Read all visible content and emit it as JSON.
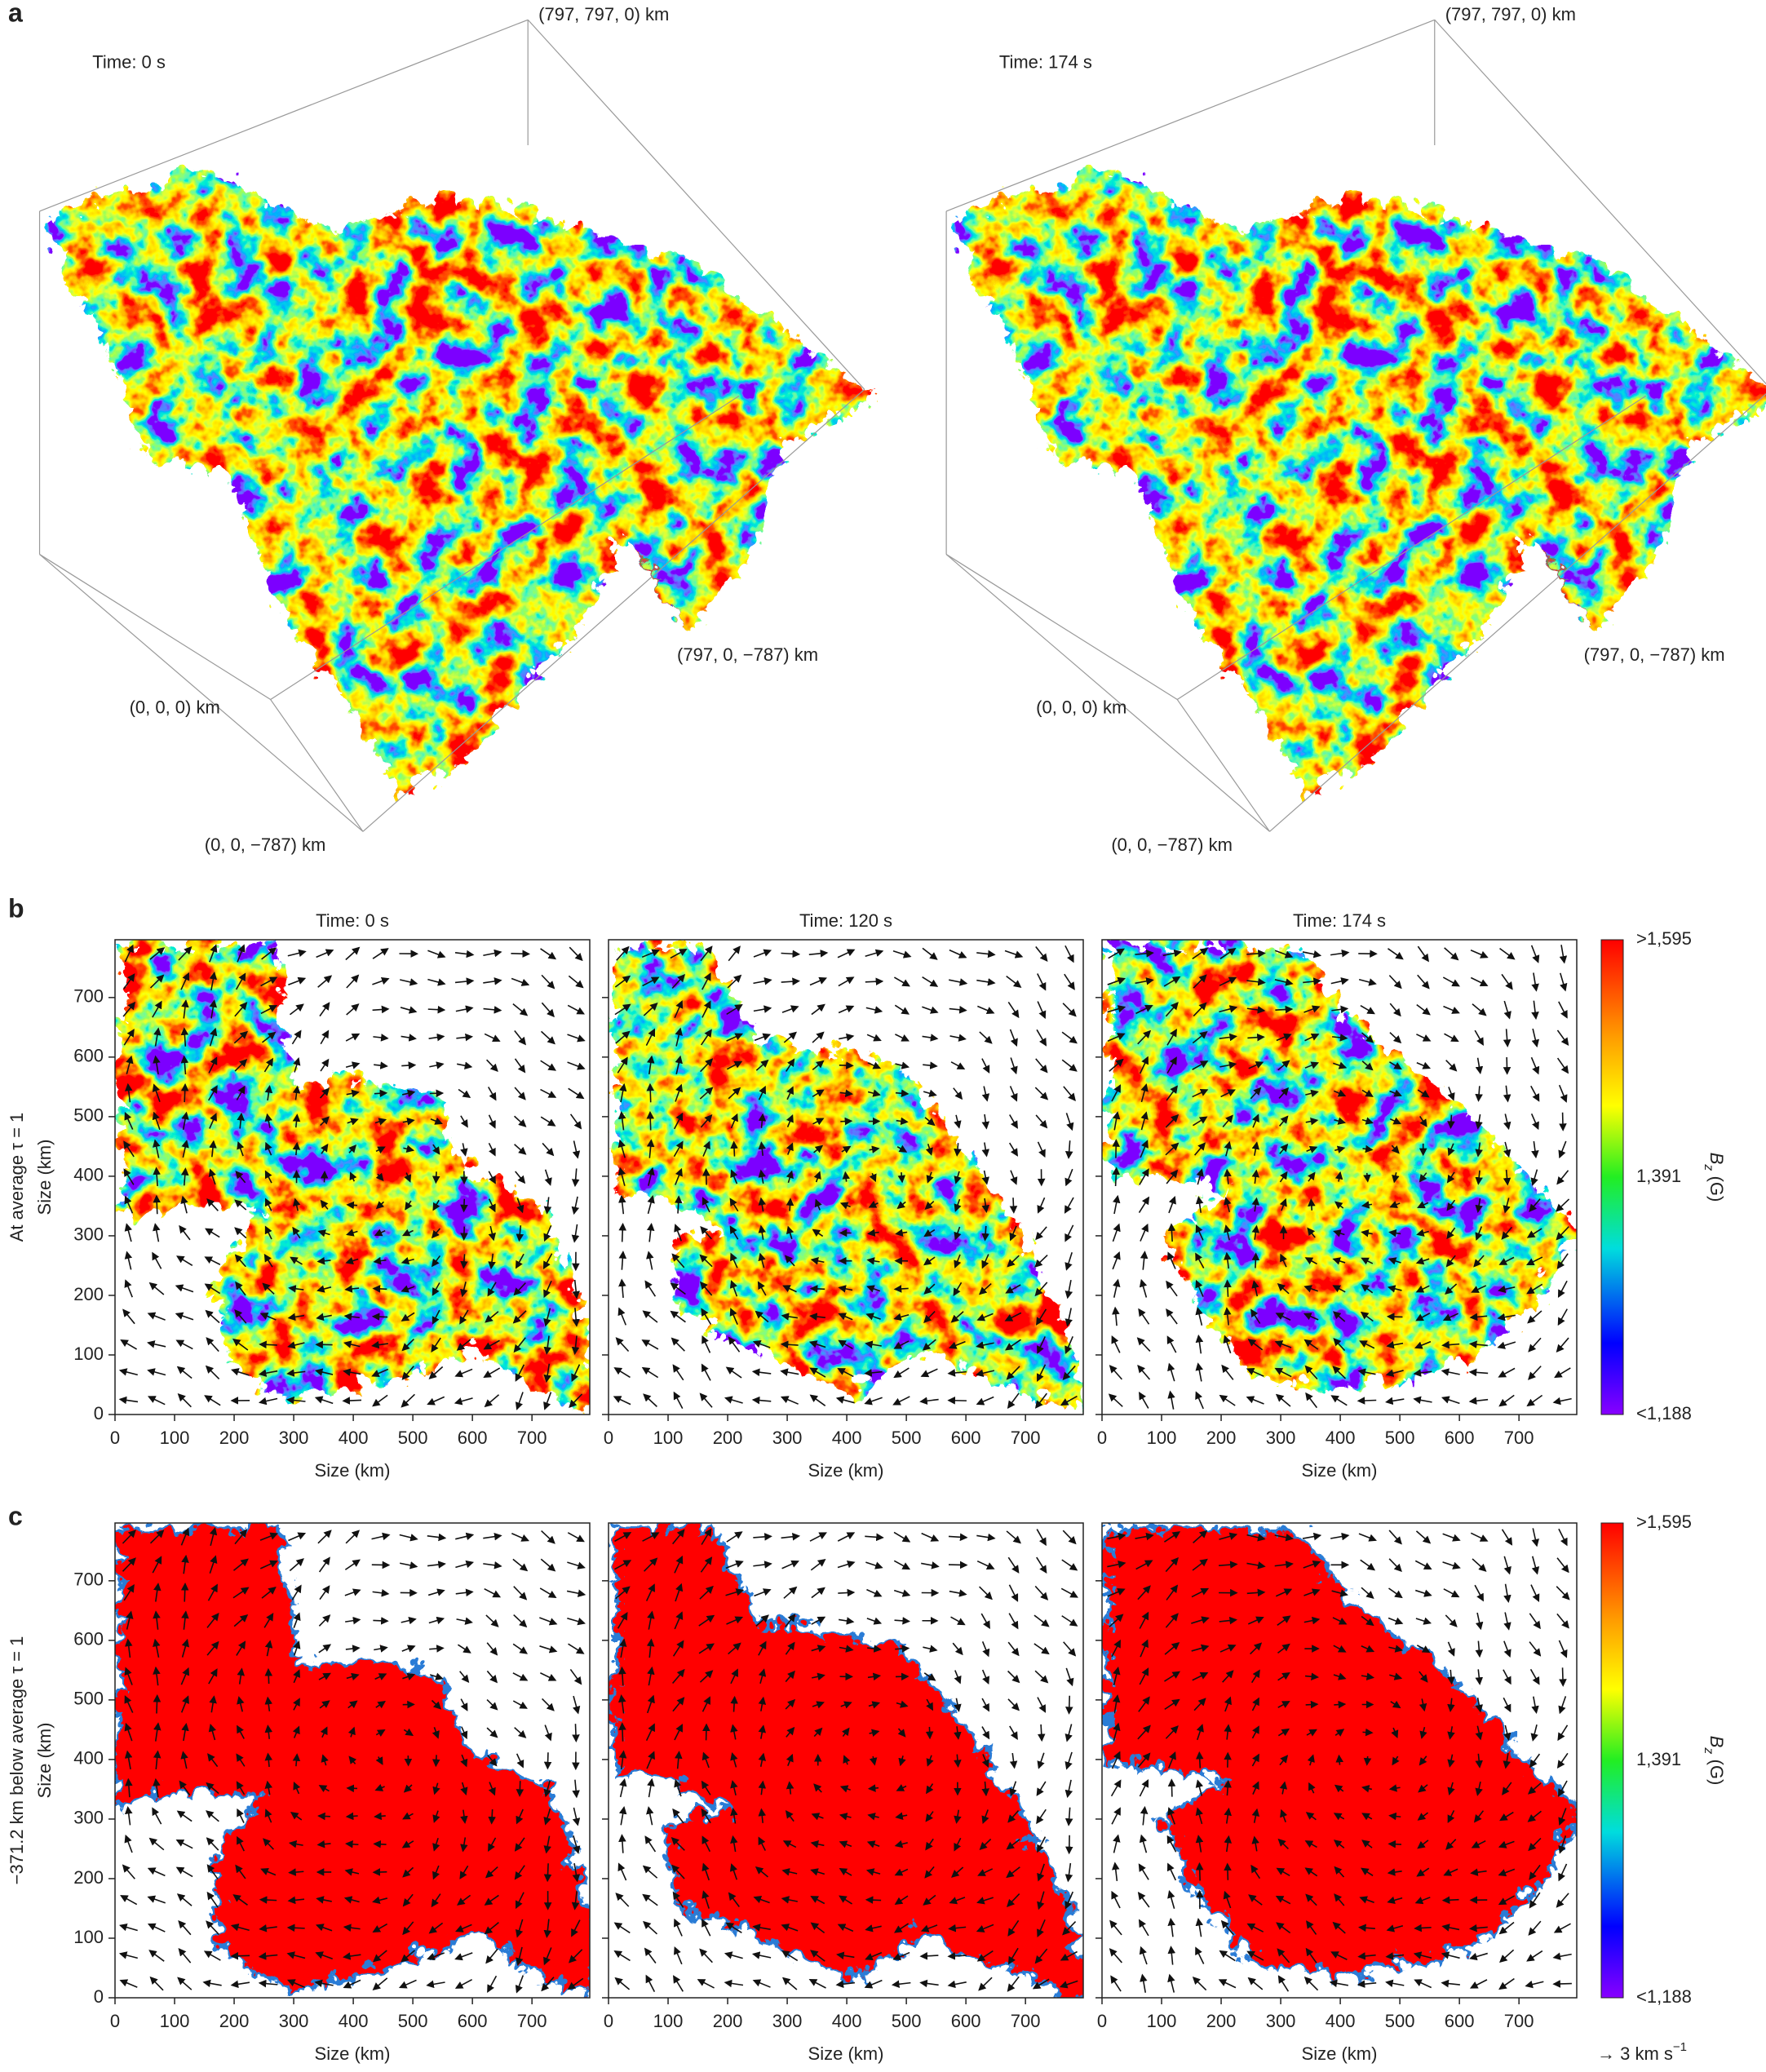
{
  "panel_a": {
    "label": "a",
    "views": [
      {
        "time": "Time: 0 s",
        "corner_top": "(797, 797, 0) km",
        "corner_right": "(797, 0, −787) km",
        "corner_origin": "(0, 0, 0) km",
        "corner_bottom": "(0, 0, −787) km"
      },
      {
        "time": "Time: 174 s",
        "corner_top": "(797, 797, 0) km",
        "corner_right": "(797, 0, −787) km",
        "corner_origin": "(0, 0, 0) km",
        "corner_bottom": "(0, 0, −787) km"
      }
    ]
  },
  "panel_b": {
    "label": "b",
    "y_label": [
      "At average τ = 1",
      "Size (km)"
    ],
    "maps": [
      {
        "title": "Time: 0 s"
      },
      {
        "title": "Time: 120 s"
      },
      {
        "title": "Time: 174 s"
      }
    ],
    "x_label": "Size (km)",
    "xlim": [
      0,
      797
    ],
    "ylim": [
      0,
      797
    ],
    "xticks": [
      0,
      100,
      200,
      300,
      400,
      500,
      600,
      700
    ],
    "yticks": [
      0,
      100,
      200,
      300,
      400,
      500,
      600,
      700
    ],
    "colorbar": {
      "top": ">1,595",
      "middle": "1,391",
      "bottom": "<1,188",
      "symbol": "B",
      "subscript": "z",
      "unit": " (G)"
    }
  },
  "panel_c": {
    "label": "c",
    "y_label": [
      "−371.2 km below average τ = 1",
      "Size (km)"
    ],
    "x_label": "Size (km)",
    "xlim": [
      0,
      797
    ],
    "ylim": [
      0,
      797
    ],
    "xticks": [
      0,
      100,
      200,
      300,
      400,
      500,
      600,
      700
    ],
    "yticks": [
      0,
      100,
      200,
      300,
      400,
      500,
      600,
      700
    ],
    "colorbar": {
      "top": ">1,595",
      "middle": "1,391",
      "bottom": "<1,188",
      "symbol": "B",
      "subscript": "z",
      "unit": " (G)"
    },
    "vector_key": {
      "text": "→ 3 km s",
      "exponent": "−1"
    }
  }
}
